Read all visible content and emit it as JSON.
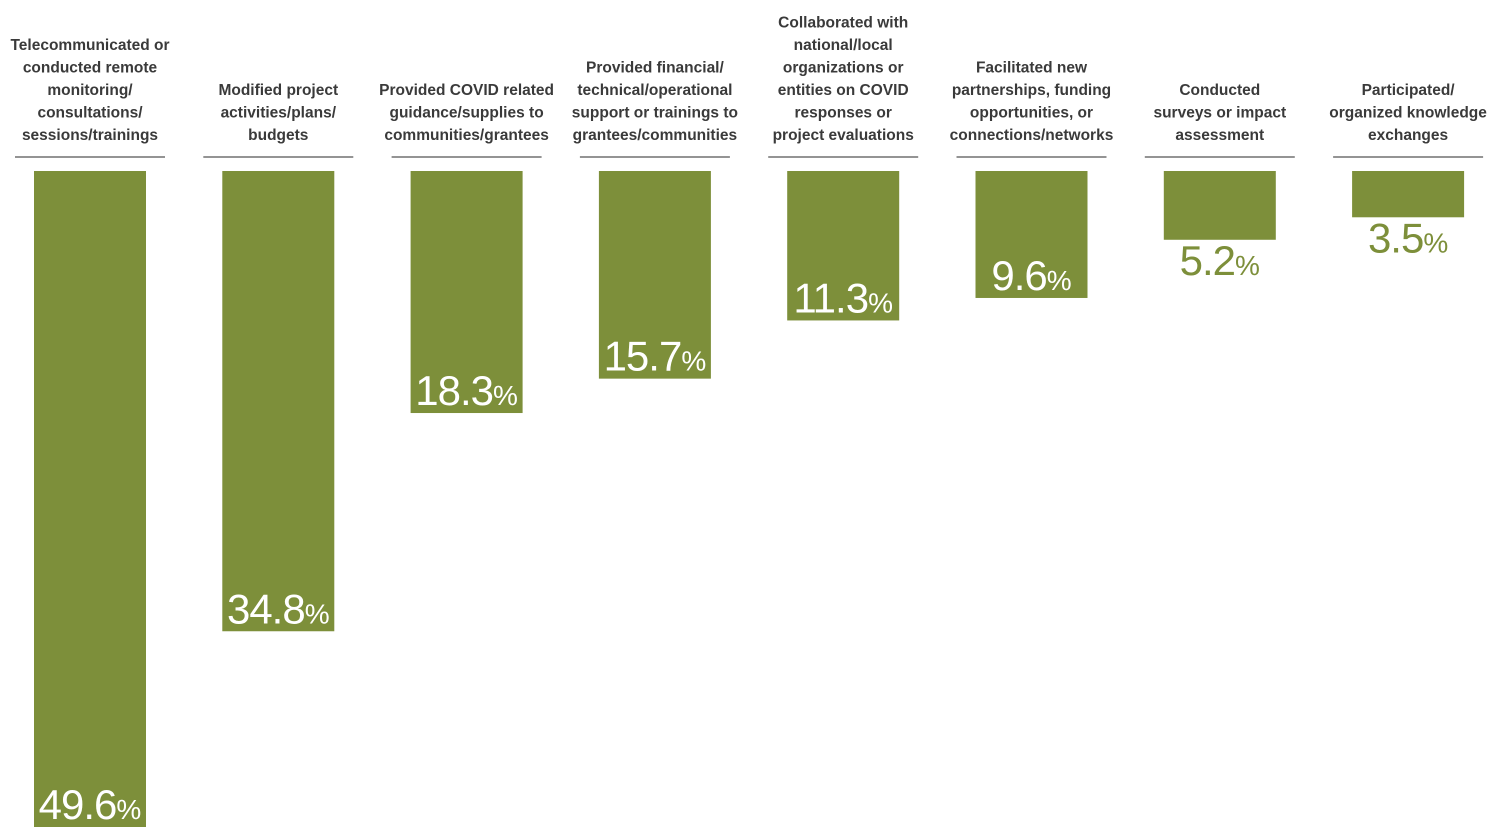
{
  "chart_data": {
    "type": "bar",
    "categories": [
      [
        "Telecommunicated or",
        "conducted remote",
        "monitoring/",
        "consultations/",
        "sessions/trainings"
      ],
      [
        "Modified project",
        "activities/plans/",
        "budgets"
      ],
      [
        "Provided COVID related",
        "guidance/supplies to",
        "communities/grantees"
      ],
      [
        "Provided financial/",
        "technical/operational",
        "support or trainings to",
        "grantees/communities"
      ],
      [
        "Collaborated with",
        "national/local",
        "organizations or",
        "entities on COVID",
        "responses or",
        "project evaluations"
      ],
      [
        "Facilitated new",
        "partnerships, funding",
        "opportunities, or",
        "connections/networks"
      ],
      [
        "Conducted",
        "surveys or impact",
        "assessment"
      ],
      [
        "Participated/",
        "organized knowledge",
        "exchanges"
      ]
    ],
    "values": [
      49.6,
      34.8,
      18.3,
      15.7,
      11.3,
      9.6,
      5.2,
      3.5
    ],
    "value_labels": [
      "49.6",
      "34.8",
      "18.3",
      "15.7",
      "11.3",
      "9.6",
      "5.2",
      "3.5"
    ],
    "value_suffix": "%",
    "ylim": [
      0,
      49.6
    ],
    "orientation": "bars hang downward from top",
    "grid": false,
    "legend": "none",
    "colors": {
      "bar": "#7d8f3a",
      "label_inside": "#ffffff",
      "label_outside": "#7d8f3a"
    }
  }
}
